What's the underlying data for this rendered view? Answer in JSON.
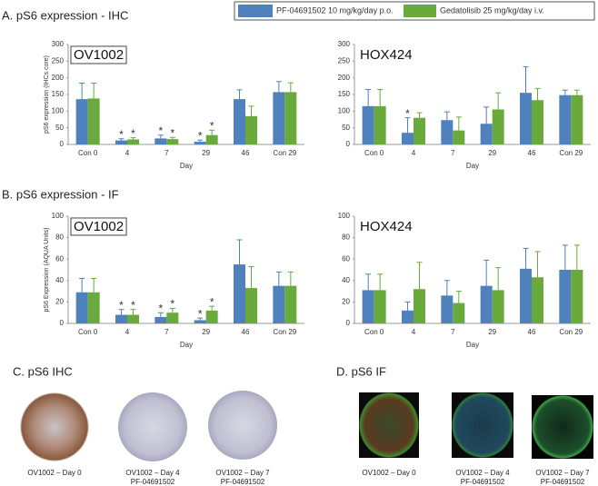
{
  "sections": [
    "A. pS6 expression - IHC",
    "B. pS6 expression - IF",
    "C. pS6 IHC",
    "D. pS6 IF"
  ],
  "chart_data": [
    {
      "type": "bar",
      "title": "OV1002",
      "xlabel": "Day",
      "ylabel": "pS6 expression (IHCs core)",
      "categories": [
        "Con 0",
        "4",
        "7",
        "29",
        "46",
        "Con 29"
      ],
      "ylim": [
        0,
        300
      ],
      "yticks": [
        0,
        50,
        100,
        150,
        200,
        250,
        300
      ],
      "series": [
        {
          "name": "PF-04691502  10 mg/kg/day p.o.",
          "color": "#4f81bd",
          "values": [
            136,
            12,
            18,
            8,
            136,
            157
          ],
          "errors": [
            48,
            5,
            10,
            5,
            28,
            32
          ],
          "annotations": [
            null,
            "*",
            "*",
            "*",
            null,
            null
          ]
        },
        {
          "name": "Gedatolisib  25 mg/kg/day i.v.",
          "color": "#6aaa3c",
          "values": [
            138,
            15,
            16,
            28,
            85,
            157
          ],
          "errors": [
            46,
            5,
            5,
            15,
            30,
            28
          ],
          "annotations": [
            null,
            "*",
            "*",
            "*",
            null,
            null
          ]
        }
      ]
    },
    {
      "type": "bar",
      "title": "HOX424",
      "xlabel": "Day",
      "categories": [
        "Con 0",
        "4",
        "7",
        "29",
        "46",
        "Con 29"
      ],
      "ylim": [
        0,
        300
      ],
      "yticks": [
        0,
        50,
        100,
        150,
        200,
        250,
        300
      ],
      "series": [
        {
          "name": "PF-04691502  10 mg/kg/day p.o.",
          "color": "#4f81bd",
          "values": [
            115,
            35,
            73,
            62,
            155,
            148
          ],
          "errors": [
            50,
            45,
            25,
            50,
            78,
            15
          ],
          "annotations": [
            null,
            "*",
            null,
            null,
            null,
            null
          ]
        },
        {
          "name": "Gedatolisib  25 mg/kg/day i.v.",
          "color": "#6aaa3c",
          "values": [
            115,
            80,
            42,
            105,
            133,
            148
          ],
          "errors": [
            50,
            15,
            40,
            50,
            35,
            15
          ],
          "annotations": [
            null,
            null,
            null,
            null,
            null,
            null
          ]
        }
      ]
    },
    {
      "type": "bar",
      "title": "OV1002",
      "xlabel": "Day",
      "ylabel": "pS6 Expression (AQUA Units)",
      "categories": [
        "Con 0",
        "4",
        "7",
        "29",
        "46",
        "Con 29"
      ],
      "ylim": [
        0,
        100
      ],
      "yticks": [
        0,
        20,
        40,
        60,
        80,
        100
      ],
      "series": [
        {
          "name": "PF-04691502  10 mg/kg/day p.o.",
          "color": "#4f81bd",
          "values": [
            29,
            8,
            6,
            3,
            55,
            35
          ],
          "errors": [
            13,
            5,
            4,
            2,
            23,
            13
          ],
          "annotations": [
            null,
            "*",
            "*",
            "*",
            null,
            null
          ]
        },
        {
          "name": "Gedatolisib  25 mg/kg/day i.v.",
          "color": "#6aaa3c",
          "values": [
            29,
            8,
            10,
            12,
            33,
            35
          ],
          "errors": [
            13,
            5,
            4,
            4,
            20,
            13
          ],
          "annotations": [
            null,
            "*",
            "*",
            "*",
            null,
            null
          ]
        }
      ]
    },
    {
      "type": "bar",
      "title": "HOX424",
      "xlabel": "Day",
      "categories": [
        "Con 0",
        "4",
        "7",
        "29",
        "46",
        "Con 29"
      ],
      "ylim": [
        0,
        100
      ],
      "yticks": [
        0,
        20,
        40,
        60,
        80,
        100
      ],
      "series": [
        {
          "name": "PF-04691502  10 mg/kg/day p.o.",
          "color": "#4f81bd",
          "values": [
            31,
            12,
            26,
            35,
            51,
            50
          ],
          "errors": [
            15,
            8,
            14,
            24,
            19,
            23
          ],
          "annotations": [
            null,
            null,
            null,
            null,
            null,
            null
          ]
        },
        {
          "name": "Gedatolisib  25 mg/kg/day i.v.",
          "color": "#6aaa3c",
          "values": [
            31,
            32,
            19,
            31,
            43,
            50
          ],
          "errors": [
            15,
            25,
            11,
            21,
            24,
            23
          ],
          "annotations": [
            null,
            null,
            null,
            null,
            null,
            null
          ]
        }
      ]
    }
  ],
  "images": {
    "ihc": [
      [
        "OV1002 – Day 0"
      ],
      [
        "OV1002 – Day 4",
        "PF-04691502"
      ],
      [
        "OV1002 – Day 7",
        "PF-04691502"
      ]
    ],
    "if": [
      [
        "OV1002 – Day 0"
      ],
      [
        "OV1002 – Day 4",
        "PF-04691502"
      ],
      [
        "OV1002 – Day 7",
        "PF-04691502"
      ]
    ]
  }
}
